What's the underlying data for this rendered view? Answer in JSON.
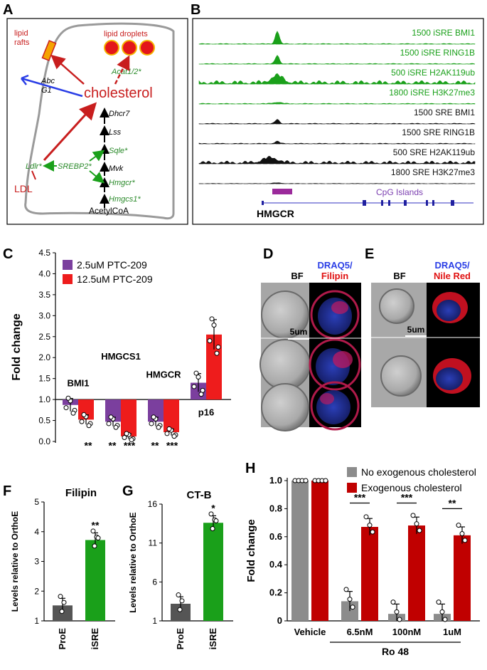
{
  "panels": {
    "A": "A",
    "B": "B",
    "C": "C",
    "D": "D",
    "E": "E",
    "F": "F",
    "G": "G",
    "H": "H"
  },
  "colors": {
    "purple": "#7b3f9e",
    "red": "#ee1c1c",
    "green": "#1aa01a",
    "darkgreen": "#2a8a2a",
    "gray": "#888888",
    "darkred": "#c00000",
    "blue": "#2a3ee6"
  },
  "panelA": {
    "lipid_rafts": "lipid\nrafts",
    "lipid_rafts_l1": "lipid",
    "lipid_rafts_l2": "rafts",
    "lipid_droplets": "lipid droplets",
    "acat": "Acat1/2*",
    "abc1": "Abc",
    "abc2": "G1",
    "cholesterol": "cholesterol",
    "dhcr7": "Dhcr7",
    "lss": "Lss",
    "sqle": "Sqle*",
    "mvk": "Mvk",
    "ldlr": "Ldlr*",
    "srebp2": "SREBP2*",
    "hmgcr": "Hmgcr*",
    "hmgcs1": "Hmgcs1*",
    "ldl": "LDL",
    "acetylcoa": "AcetylCoA"
  },
  "panelB": {
    "tracks": [
      {
        "label": "1500 iSRE BMI1",
        "color": "#1aa01a"
      },
      {
        "label": "1500 iSRE RING1B",
        "color": "#1aa01a"
      },
      {
        "label": "500 iSRE H2AK119ub",
        "color": "#1aa01a"
      },
      {
        "label": "1800 iSRE H3K27me3",
        "color": "#1aa01a"
      },
      {
        "label": "1500 SRE BMI1",
        "color": "#111111"
      },
      {
        "label": "1500 SRE RING1B",
        "color": "#111111"
      },
      {
        "label": "500 SRE H2AK119ub",
        "color": "#111111"
      },
      {
        "label": "1800 SRE H3K27me3",
        "color": "#111111"
      }
    ],
    "cpg": "CpG Islands",
    "gene": "HMGCR"
  },
  "panelC": {
    "ylabel": "Fold change",
    "yticks": [
      "0.0",
      "0.5",
      "1.0",
      "1.5",
      "2.0",
      "2.5",
      "3.0",
      "3.5",
      "4.0",
      "4.5"
    ],
    "legend": [
      "2.5uM PTC-209",
      "12.5uM PTC-209"
    ],
    "genes": [
      "BMI1",
      "HMGCS1",
      "HMGCR",
      "p16"
    ],
    "sig": [
      "**",
      "**",
      "***",
      "**",
      "***"
    ]
  },
  "panelD": {
    "bf": "BF",
    "stain1": "DRAQ5/",
    "stain2": "Filipin",
    "scale": "5um"
  },
  "panelE": {
    "bf": "BF",
    "stain1": "DRAQ5/",
    "stain2": "Nile Red",
    "scale": "5um"
  },
  "panelF": {
    "title": "Filipin",
    "ylabel": "Levels relative to OrthoE",
    "yticks": [
      "1",
      "2",
      "3",
      "4",
      "5"
    ],
    "cats": [
      "ProE",
      "iSRE"
    ],
    "sig": "**"
  },
  "panelG": {
    "title": "CT-B",
    "ylabel": "Levels relative to OrthoE",
    "yticks": [
      "1",
      "6",
      "11",
      "16"
    ],
    "cats": [
      "ProE",
      "iSRE"
    ],
    "sig": "*"
  },
  "panelH": {
    "ylabel": "Fold change",
    "yticks": [
      "0",
      "0.2",
      "0.4",
      "0.6",
      "0.8",
      "1.0"
    ],
    "legend": [
      "No exogenous cholesterol",
      "Exogenous cholesterol"
    ],
    "cats": [
      "Vehicle",
      "6.5nM",
      "100nM",
      "1uM"
    ],
    "drug": "Ro 48",
    "sig": [
      "***",
      "***",
      "**"
    ]
  },
  "chart_data": [
    {
      "type": "bar",
      "panel": "C",
      "categories": [
        "BMI1",
        "HMGCS1",
        "HMGCR",
        "p16"
      ],
      "ylabel": "Fold change",
      "ylim": [
        0,
        4.5
      ],
      "series": [
        {
          "name": "2.5uM PTC-209",
          "values": [
            0.87,
            0.47,
            0.47,
            1.4
          ]
        },
        {
          "name": "12.5uM PTC-209",
          "values": [
            0.52,
            0.12,
            0.22,
            2.55
          ]
        }
      ]
    },
    {
      "type": "bar",
      "panel": "F",
      "title": "Filipin",
      "categories": [
        "ProE",
        "iSRE"
      ],
      "values": [
        1.52,
        3.72
      ],
      "ylabel": "Levels relative to OrthoE",
      "ylim": [
        1,
        5
      ]
    },
    {
      "type": "bar",
      "panel": "G",
      "title": "CT-B",
      "categories": [
        "ProE",
        "iSRE"
      ],
      "values": [
        3.2,
        13.6
      ],
      "ylabel": "Levels relative to OrthoE",
      "ylim": [
        1,
        16
      ]
    },
    {
      "type": "bar",
      "panel": "H",
      "categories": [
        "Vehicle",
        "6.5nM",
        "100nM",
        "1uM"
      ],
      "ylabel": "Fold change",
      "ylim": [
        0,
        1
      ],
      "series": [
        {
          "name": "No exogenous cholesterol",
          "values": [
            1.0,
            0.14,
            0.05,
            0.05
          ]
        },
        {
          "name": "Exogenous cholesterol",
          "values": [
            1.0,
            0.67,
            0.68,
            0.61
          ]
        }
      ]
    }
  ]
}
